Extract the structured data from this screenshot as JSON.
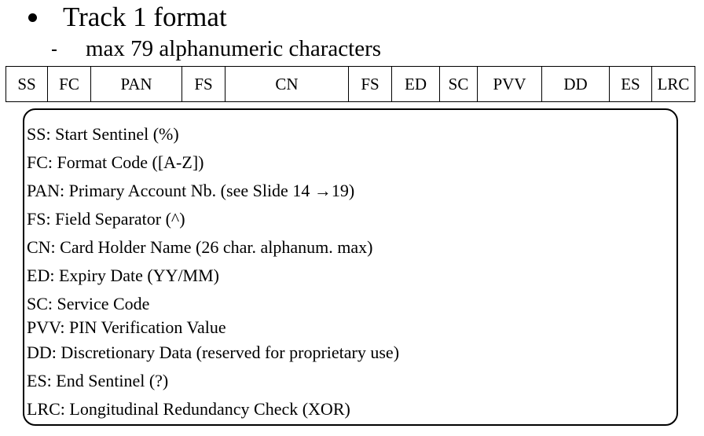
{
  "heading": {
    "title": "Track 1 format",
    "subtitle": "max 79 alphanumeric characters"
  },
  "fields": [
    "SS",
    "FC",
    "PAN",
    "FS",
    "CN",
    "FS",
    "ED",
    "SC",
    "PVV",
    "DD",
    "ES",
    "LRC"
  ],
  "legend": [
    "SS: Start Sentinel (%)",
    "FC: Format Code ([A-Z])",
    "PAN: Primary Account Nb. (see Slide 14 →19)",
    "FS: Field Separator (^)",
    "CN: Card Holder Name (26 char. alphanum. max)",
    "ED: Expiry Date (YY/MM)",
    "SC: Service Code",
    "PVV: PIN Verification Value",
    "DD: Discretionary Data (reserved for proprietary use)",
    "ES: End Sentinel (?)",
    "LRC: Longitudinal Redundancy Check (XOR)"
  ]
}
